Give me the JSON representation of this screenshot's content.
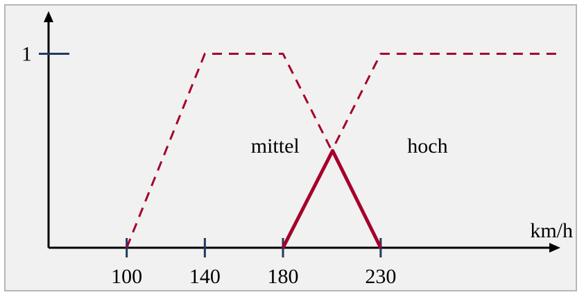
{
  "chart_data": {
    "type": "line",
    "title": "",
    "xlabel": "km/h",
    "ylabel": "",
    "xlim": [
      60,
      322
    ],
    "ylim": [
      0,
      1.22
    ],
    "x_ticks": [
      100,
      140,
      180,
      230
    ],
    "x_tick_labels": [
      "100",
      "140",
      "180",
      "230"
    ],
    "y_ticks": [
      1
    ],
    "y_tick_labels": [
      "1"
    ],
    "series": [
      {
        "name": "mittel",
        "style": "dashed",
        "color": "#a5002a",
        "x": [
          100,
          140,
          180,
          230
        ],
        "y": [
          0,
          1,
          1,
          0
        ]
      },
      {
        "name": "hoch",
        "style": "dashed",
        "color": "#a5002a",
        "x": [
          180,
          230,
          320
        ],
        "y": [
          0,
          1,
          1
        ]
      },
      {
        "name": "",
        "style": "solid",
        "color": "#a5002a",
        "x": [
          180,
          205.4,
          230
        ],
        "y": [
          0,
          0.5,
          0
        ]
      }
    ],
    "annotations": [
      {
        "text": "mittel",
        "x": 176,
        "y": 0.49
      },
      {
        "text": "hoch",
        "x": 254,
        "y": 0.49
      }
    ],
    "grid": false,
    "colors": {
      "curve": "#a5002a",
      "axis": "#000000",
      "tick": "#1f3a5f",
      "background": "#f1f1f1"
    }
  }
}
